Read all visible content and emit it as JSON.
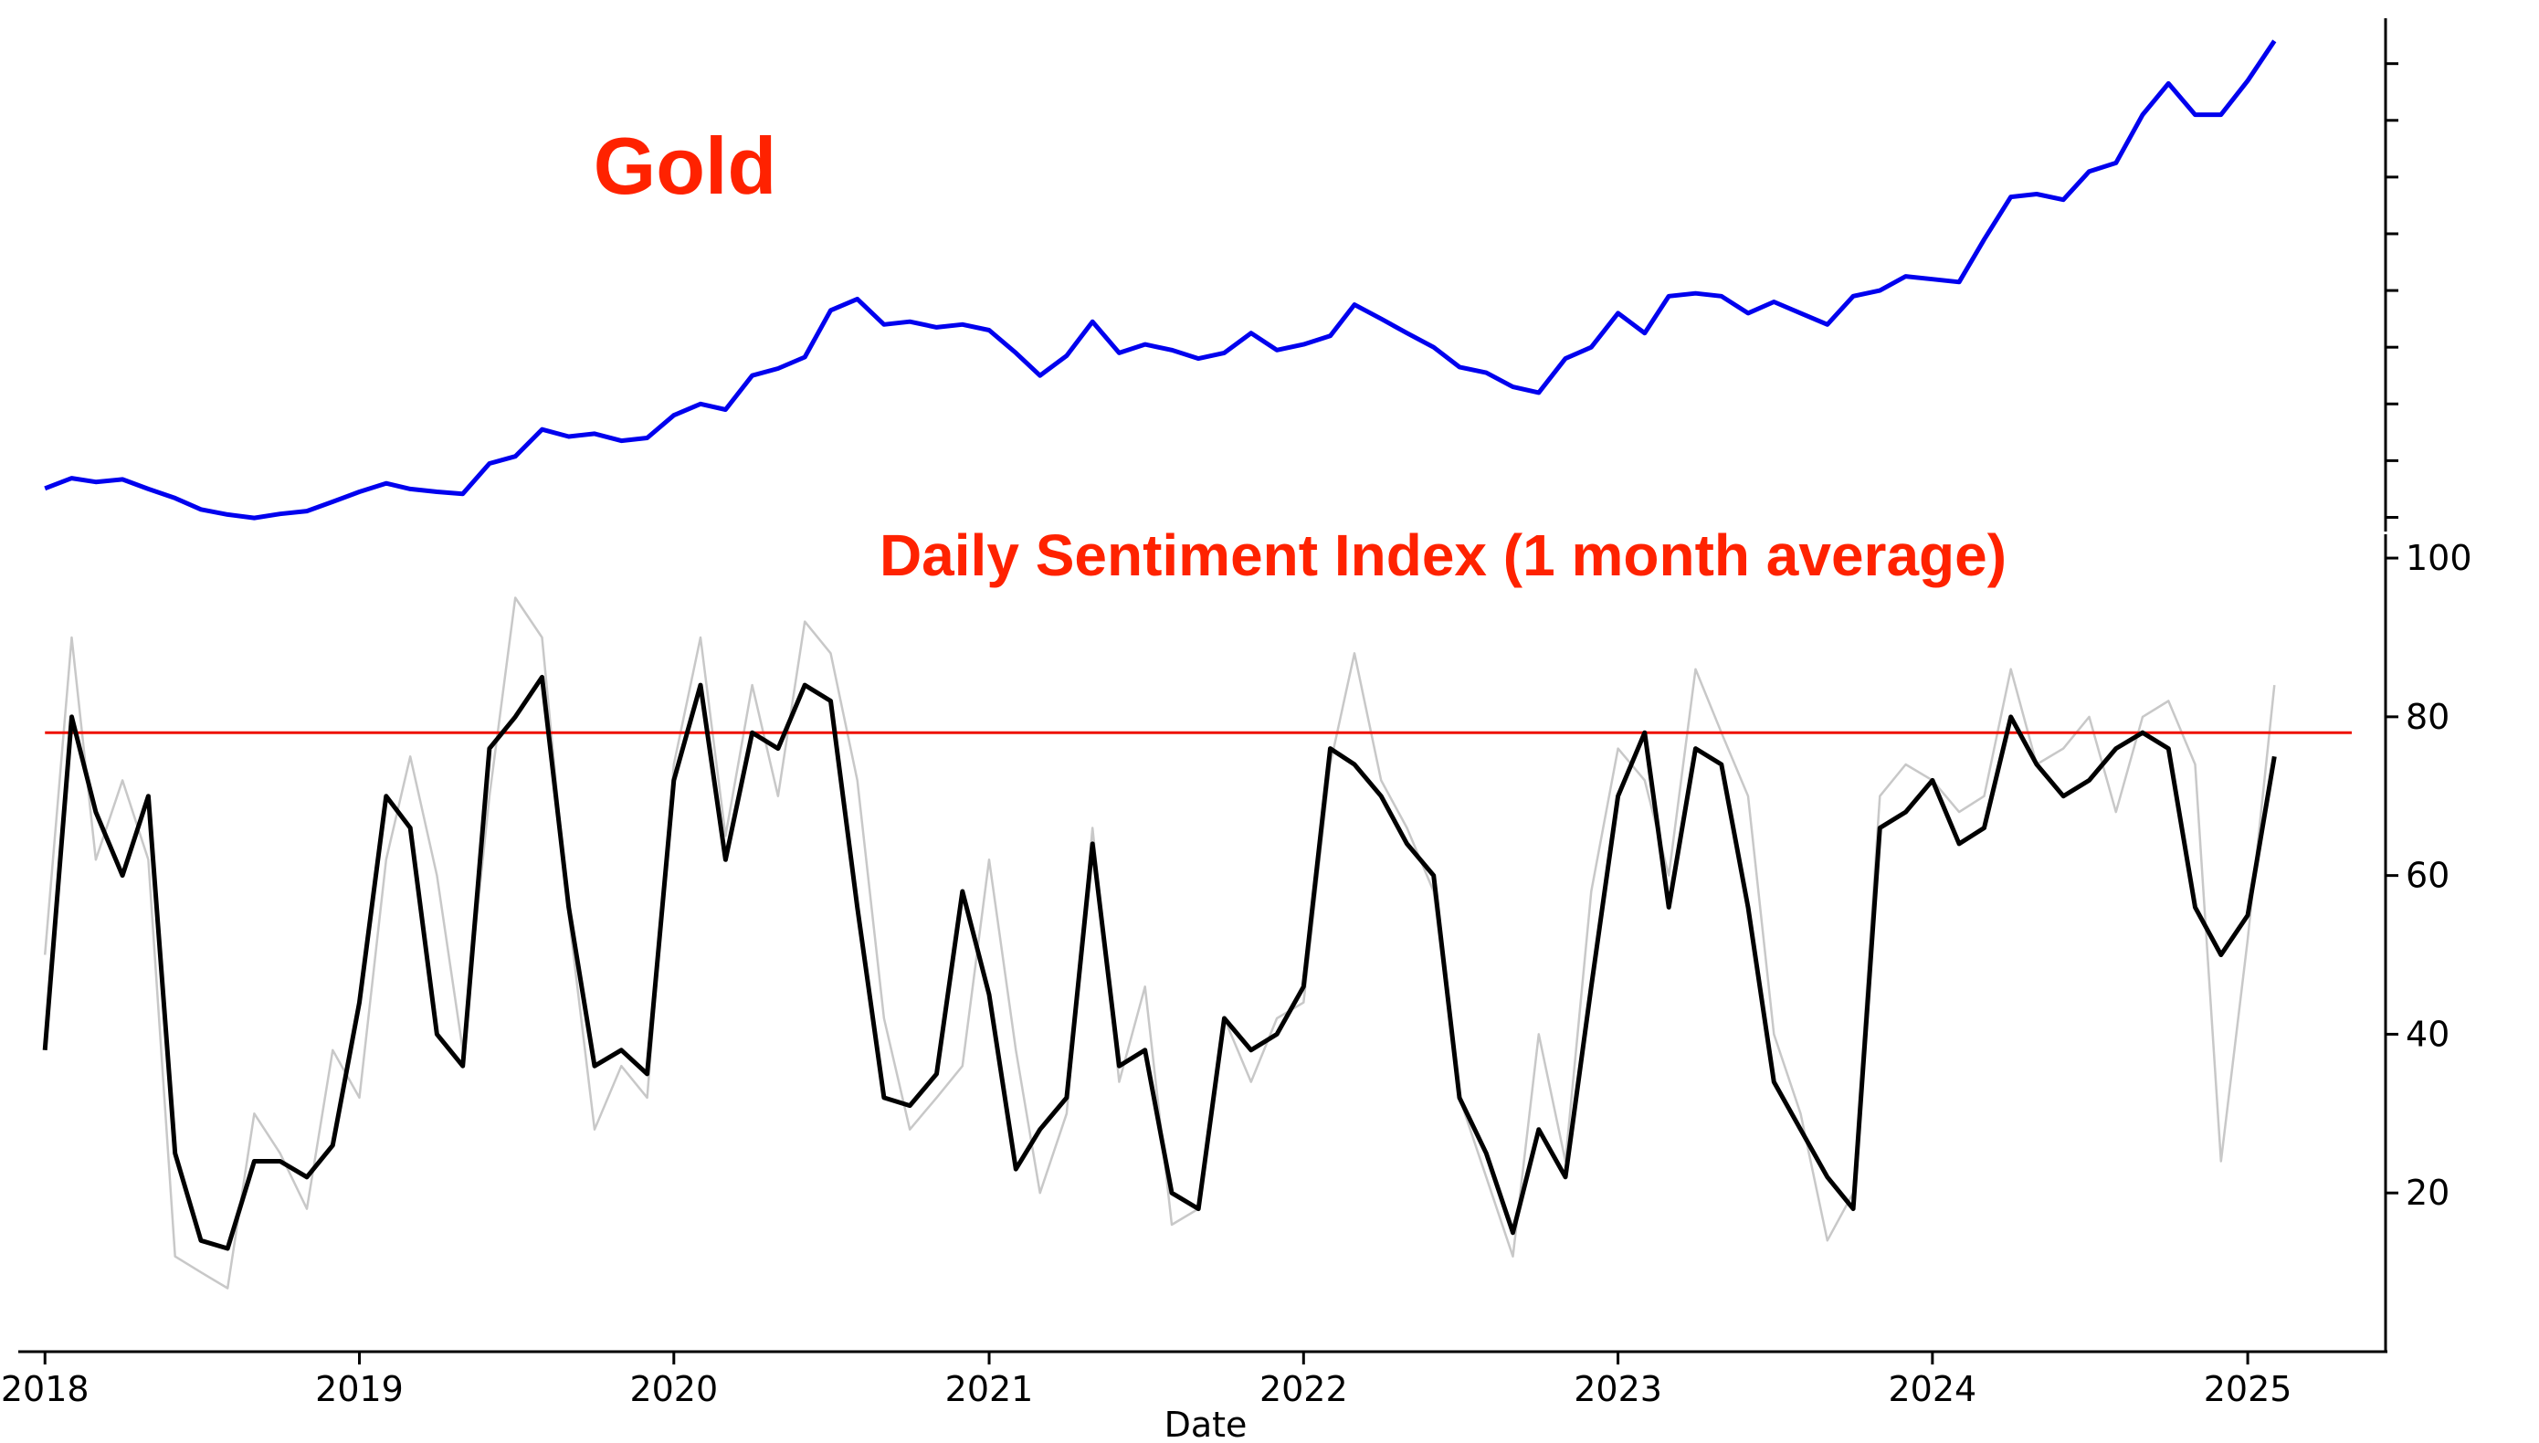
{
  "chart_data": [
    {
      "type": "line",
      "title": "Gold",
      "title_color": "#ff2200",
      "series": [
        {
          "color": "#0000ee",
          "x": [
            "2018-01-01",
            "2018-02-01",
            "2018-03-01",
            "2018-04-01",
            "2018-05-01",
            "2018-06-01",
            "2018-07-01",
            "2018-08-01",
            "2018-09-01",
            "2018-10-01",
            "2018-11-01",
            "2018-12-01",
            "2019-01-01",
            "2019-02-01",
            "2019-03-01",
            "2019-04-01",
            "2019-05-01",
            "2019-06-01",
            "2019-07-01",
            "2019-08-01",
            "2019-09-01",
            "2019-10-01",
            "2019-11-01",
            "2019-12-01",
            "2020-01-01",
            "2020-02-01",
            "2020-03-01",
            "2020-04-01",
            "2020-05-01",
            "2020-06-01",
            "2020-07-01",
            "2020-08-01",
            "2020-09-01",
            "2020-10-01",
            "2020-11-01",
            "2020-12-01",
            "2021-01-01",
            "2021-02-01",
            "2021-03-01",
            "2021-04-01",
            "2021-05-01",
            "2021-06-01",
            "2021-07-01",
            "2021-08-01",
            "2021-09-01",
            "2021-10-01",
            "2021-11-01",
            "2021-12-01",
            "2022-01-01",
            "2022-02-01",
            "2022-03-01",
            "2022-04-01",
            "2022-05-01",
            "2022-06-01",
            "2022-07-01",
            "2022-08-01",
            "2022-09-01",
            "2022-10-01",
            "2022-11-01",
            "2022-12-01",
            "2023-01-01",
            "2023-02-01",
            "2023-03-01",
            "2023-04-01",
            "2023-05-01",
            "2023-06-01",
            "2023-07-01",
            "2023-08-01",
            "2023-09-01",
            "2023-10-01",
            "2023-11-01",
            "2023-12-01",
            "2024-01-01",
            "2024-02-01",
            "2024-03-01",
            "2024-04-01",
            "2024-05-01",
            "2024-06-01",
            "2024-07-01",
            "2024-08-01",
            "2024-09-01",
            "2024-10-01",
            "2024-11-01",
            "2024-12-01",
            "2025-01-01",
            "2025-02-01"
          ],
          "values": [
            1302,
            1338,
            1325,
            1334,
            1300,
            1268,
            1228,
            1210,
            1198,
            1212,
            1222,
            1255,
            1290,
            1320,
            1300,
            1290,
            1283,
            1390,
            1415,
            1510,
            1485,
            1495,
            1470,
            1480,
            1560,
            1600,
            1580,
            1700,
            1725,
            1765,
            1930,
            1970,
            1880,
            1890,
            1870,
            1880,
            1860,
            1780,
            1700,
            1770,
            1890,
            1780,
            1810,
            1790,
            1760,
            1780,
            1850,
            1790,
            1810,
            1840,
            1950,
            1900,
            1850,
            1800,
            1730,
            1710,
            1660,
            1640,
            1760,
            1800,
            1920,
            1850,
            1980,
            1990,
            1980,
            1920,
            1960,
            1920,
            1880,
            1980,
            2000,
            2050,
            2040,
            2030,
            2180,
            2330,
            2340,
            2320,
            2420,
            2450,
            2620,
            2730,
            2620,
            2620,
            2740,
            2880
          ]
        }
      ],
      "ylim": [
        1150,
        2960
      ],
      "yticks": [
        1200,
        1400,
        1600,
        1800,
        2000,
        2200,
        2400,
        2600,
        2800
      ],
      "xlim": [
        "2017-12-01",
        "2025-06-10"
      ],
      "grid": false,
      "legend": "none"
    },
    {
      "type": "line",
      "title": "Daily Sentiment Index (1 month average)",
      "title_color": "#ff2200",
      "xlabel": "Date",
      "series": [
        {
          "color": "#c8c8c8",
          "x": [
            "2018-01-01",
            "2018-02-01",
            "2018-03-01",
            "2018-04-01",
            "2018-05-01",
            "2018-06-01",
            "2018-07-01",
            "2018-08-01",
            "2018-09-01",
            "2018-10-01",
            "2018-11-01",
            "2018-12-01",
            "2019-01-01",
            "2019-02-01",
            "2019-03-01",
            "2019-04-01",
            "2019-05-01",
            "2019-06-01",
            "2019-07-01",
            "2019-08-01",
            "2019-09-01",
            "2019-10-01",
            "2019-11-01",
            "2019-12-01",
            "2020-01-01",
            "2020-02-01",
            "2020-03-01",
            "2020-04-01",
            "2020-05-01",
            "2020-06-01",
            "2020-07-01",
            "2020-08-01",
            "2020-09-01",
            "2020-10-01",
            "2020-11-01",
            "2020-12-01",
            "2021-01-01",
            "2021-02-01",
            "2021-03-01",
            "2021-04-01",
            "2021-05-01",
            "2021-06-01",
            "2021-07-01",
            "2021-08-01",
            "2021-09-01",
            "2021-10-01",
            "2021-11-01",
            "2021-12-01",
            "2022-01-01",
            "2022-02-01",
            "2022-03-01",
            "2022-04-01",
            "2022-05-01",
            "2022-06-01",
            "2022-07-01",
            "2022-08-01",
            "2022-09-01",
            "2022-10-01",
            "2022-11-01",
            "2022-12-01",
            "2023-01-01",
            "2023-02-01",
            "2023-03-01",
            "2023-04-01",
            "2023-05-01",
            "2023-06-01",
            "2023-07-01",
            "2023-08-01",
            "2023-09-01",
            "2023-10-01",
            "2023-11-01",
            "2023-12-01",
            "2024-01-01",
            "2024-02-01",
            "2024-03-01",
            "2024-04-01",
            "2024-05-01",
            "2024-06-01",
            "2024-07-01",
            "2024-08-01",
            "2024-09-01",
            "2024-10-01",
            "2024-11-01",
            "2024-12-01",
            "2025-01-01",
            "2025-02-01"
          ],
          "values": [
            50,
            90,
            62,
            72,
            62,
            12,
            10,
            8,
            30,
            25,
            18,
            38,
            32,
            62,
            75,
            60,
            38,
            70,
            95,
            90,
            55,
            28,
            36,
            32,
            74,
            90,
            65,
            84,
            70,
            92,
            88,
            72,
            42,
            28,
            32,
            36,
            62,
            38,
            20,
            30,
            66,
            34,
            46,
            16,
            18,
            42,
            34,
            42,
            44,
            74,
            88,
            72,
            66,
            58,
            32,
            22,
            12,
            40,
            24,
            58,
            76,
            72,
            60,
            86,
            78,
            70,
            40,
            30,
            14,
            20,
            70,
            74,
            72,
            68,
            70,
            86,
            74,
            76,
            80,
            68,
            80,
            82,
            74,
            24,
            52,
            84
          ]
        },
        {
          "color": "#000000",
          "x": [
            "2018-01-01",
            "2018-02-01",
            "2018-03-01",
            "2018-04-01",
            "2018-05-01",
            "2018-06-01",
            "2018-07-01",
            "2018-08-01",
            "2018-09-01",
            "2018-10-01",
            "2018-11-01",
            "2018-12-01",
            "2019-01-01",
            "2019-02-01",
            "2019-03-01",
            "2019-04-01",
            "2019-05-01",
            "2019-06-01",
            "2019-07-01",
            "2019-08-01",
            "2019-09-01",
            "2019-10-01",
            "2019-11-01",
            "2019-12-01",
            "2020-01-01",
            "2020-02-01",
            "2020-03-01",
            "2020-04-01",
            "2020-05-01",
            "2020-06-01",
            "2020-07-01",
            "2020-08-01",
            "2020-09-01",
            "2020-10-01",
            "2020-11-01",
            "2020-12-01",
            "2021-01-01",
            "2021-02-01",
            "2021-03-01",
            "2021-04-01",
            "2021-05-01",
            "2021-06-01",
            "2021-07-01",
            "2021-08-01",
            "2021-09-01",
            "2021-10-01",
            "2021-11-01",
            "2021-12-01",
            "2022-01-01",
            "2022-02-01",
            "2022-03-01",
            "2022-04-01",
            "2022-05-01",
            "2022-06-01",
            "2022-07-01",
            "2022-08-01",
            "2022-09-01",
            "2022-10-01",
            "2022-11-01",
            "2022-12-01",
            "2023-01-01",
            "2023-02-01",
            "2023-03-01",
            "2023-04-01",
            "2023-05-01",
            "2023-06-01",
            "2023-07-01",
            "2023-08-01",
            "2023-09-01",
            "2023-10-01",
            "2023-11-01",
            "2023-12-01",
            "2024-01-01",
            "2024-02-01",
            "2024-03-01",
            "2024-04-01",
            "2024-05-01",
            "2024-06-01",
            "2024-07-01",
            "2024-08-01",
            "2024-09-01",
            "2024-10-01",
            "2024-11-01",
            "2024-12-01",
            "2025-01-01",
            "2025-02-01"
          ],
          "values": [
            38,
            80,
            68,
            60,
            70,
            25,
            14,
            13,
            24,
            24,
            22,
            26,
            44,
            70,
            66,
            40,
            36,
            76,
            80,
            85,
            56,
            36,
            38,
            35,
            72,
            84,
            62,
            78,
            76,
            84,
            82,
            56,
            32,
            31,
            35,
            58,
            45,
            23,
            28,
            32,
            64,
            36,
            38,
            20,
            18,
            42,
            38,
            40,
            46,
            76,
            74,
            70,
            64,
            60,
            32,
            25,
            15,
            28,
            22,
            46,
            70,
            78,
            56,
            76,
            74,
            56,
            34,
            28,
            22,
            18,
            66,
            68,
            72,
            64,
            66,
            80,
            74,
            70,
            72,
            76,
            78,
            76,
            56,
            50,
            55,
            75
          ]
        }
      ],
      "reference_line": {
        "y": 78,
        "color": "#ee1100"
      },
      "ylim": [
        0,
        103
      ],
      "yticks": [
        20,
        40,
        60,
        80,
        100
      ],
      "ytick_labels": [
        "20",
        "40",
        "60",
        "80",
        "100"
      ],
      "xticks": [
        "2018-01-01",
        "2019-01-01",
        "2020-01-01",
        "2021-01-01",
        "2022-01-01",
        "2023-01-01",
        "2024-01-01",
        "2025-01-01"
      ],
      "xtick_labels": [
        "2018",
        "2019",
        "2020",
        "2021",
        "2022",
        "2023",
        "2024",
        "2025"
      ],
      "xlim": [
        "2017-12-01",
        "2025-06-10"
      ],
      "grid": false,
      "legend": "none"
    }
  ]
}
